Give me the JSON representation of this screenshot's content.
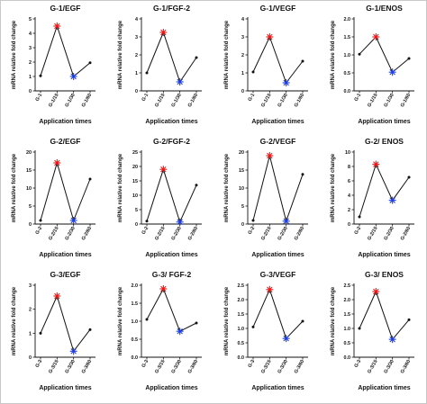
{
  "colors": {
    "line": "#111111",
    "peak": "#e11b1b",
    "trough": "#1f3fd6",
    "point": "#111111"
  },
  "chart_data": [
    {
      "type": "line",
      "title": "G-1/EGF",
      "categories": [
        "G-1",
        "G-1/15",
        "G-1/30",
        "G-1/60"
      ],
      "values": [
        1.05,
        4.5,
        1.0,
        1.95
      ],
      "yticks": [
        "0",
        "1",
        "2",
        "3",
        "4",
        "5"
      ],
      "ylim": [
        0,
        5
      ],
      "xlabel": "Application times",
      "ylabel": "mRNA relative fold change",
      "markers": [
        "dot",
        "star-red",
        "star-blue",
        "dot"
      ]
    },
    {
      "type": "line",
      "title": "G-1/FGF-2",
      "categories": [
        "G-1",
        "G-1/15",
        "G-1/30",
        "G-1/60"
      ],
      "values": [
        1.0,
        3.25,
        0.5,
        1.85
      ],
      "yticks": [
        "0",
        "1",
        "2",
        "3",
        "4"
      ],
      "ylim": [
        0,
        4
      ],
      "xlabel": "Application times",
      "ylabel": "mRNA relative fold change",
      "markers": [
        "dot",
        "star-red",
        "star-blue",
        "dot"
      ]
    },
    {
      "type": "line",
      "title": "G-1/VEGF",
      "categories": [
        "G-1",
        "G-1/15",
        "G-1/30",
        "G-1/60"
      ],
      "values": [
        1.05,
        3.0,
        0.45,
        1.65
      ],
      "yticks": [
        "0",
        "1",
        "2",
        "3",
        "4"
      ],
      "ylim": [
        0,
        4
      ],
      "xlabel": "Application times",
      "ylabel": "mRNA relative fold change",
      "markers": [
        "dot",
        "star-red",
        "star-blue",
        "dot"
      ]
    },
    {
      "type": "line",
      "title": "G-1/ENOS",
      "categories": [
        "G-1",
        "G-1/15",
        "G-1/30",
        "G-1/60"
      ],
      "values": [
        1.02,
        1.5,
        0.52,
        0.9
      ],
      "yticks": [
        "0.0",
        "0.5",
        "1.0",
        "1.5",
        "2.0"
      ],
      "ylim": [
        0,
        2
      ],
      "xlabel": "Application times",
      "ylabel": "mRNA relative fold change",
      "markers": [
        "dot",
        "star-red",
        "star-blue",
        "dot"
      ]
    },
    {
      "type": "line",
      "title": "G-2/EGF",
      "categories": [
        "G-2",
        "G-2/15",
        "G-2/30",
        "G-2/60"
      ],
      "values": [
        1.0,
        17.0,
        1.0,
        12.5
      ],
      "yticks": [
        "0",
        "5",
        "10",
        "15",
        "20"
      ],
      "ylim": [
        0,
        20
      ],
      "xlabel": "Application times",
      "ylabel": "mRNA relative fold change",
      "markers": [
        "dot",
        "star-red",
        "star-blue",
        "dot"
      ]
    },
    {
      "type": "line",
      "title": "G-2/FGF-2",
      "categories": [
        "G-2",
        "G-2/15",
        "G-2/30",
        "G-2/60"
      ],
      "values": [
        1.0,
        19.0,
        0.7,
        13.5
      ],
      "yticks": [
        "0",
        "5",
        "10",
        "15",
        "20",
        "25"
      ],
      "ylim": [
        0,
        25
      ],
      "xlabel": "Application times",
      "ylabel": "mRNA relative fold change",
      "markers": [
        "dot",
        "star-red",
        "star-blue",
        "dot"
      ]
    },
    {
      "type": "line",
      "title": "G-2/VEGF",
      "categories": [
        "G-2",
        "G-2/15",
        "G-2/30",
        "G-2/60"
      ],
      "values": [
        1.0,
        19.0,
        0.8,
        13.8
      ],
      "yticks": [
        "0",
        "5",
        "10",
        "15",
        "20"
      ],
      "ylim": [
        0,
        20
      ],
      "xlabel": "Application times",
      "ylabel": "mRNA relative fold change",
      "markers": [
        "dot",
        "star-red",
        "star-blue",
        "dot"
      ]
    },
    {
      "type": "line",
      "title": "G-2/ ENOS",
      "categories": [
        "G-2",
        "G-2/15",
        "G-2/30",
        "G-2/60"
      ],
      "values": [
        1.0,
        8.3,
        3.3,
        6.5
      ],
      "yticks": [
        "0",
        "2",
        "4",
        "6",
        "8",
        "10"
      ],
      "ylim": [
        0,
        10
      ],
      "xlabel": "Application times",
      "ylabel": "mRNA relative fold change",
      "markers": [
        "dot",
        "star-red",
        "star-blue",
        "dot"
      ]
    },
    {
      "type": "line",
      "title": "G-3/EGF",
      "categories": [
        "G-3",
        "G-3/15",
        "G-3/30",
        "G-3/60"
      ],
      "values": [
        1.0,
        2.55,
        0.25,
        1.15
      ],
      "yticks": [
        "0",
        "1",
        "2",
        "3"
      ],
      "ylim": [
        0,
        3
      ],
      "xlabel": "Application times",
      "ylabel": "mRNA relative fold change",
      "markers": [
        "dot",
        "star-red",
        "star-blue",
        "dot"
      ]
    },
    {
      "type": "line",
      "title": "G-3/ FGF-2",
      "categories": [
        "G-3",
        "G-3/15",
        "G-3/30",
        "G-3/60"
      ],
      "values": [
        1.05,
        1.9,
        0.72,
        0.95
      ],
      "yticks": [
        "0.0",
        "0.5",
        "1.0",
        "1.5",
        "2.0"
      ],
      "ylim": [
        0,
        2
      ],
      "xlabel": "Application times",
      "ylabel": "mRNA relative fold change",
      "markers": [
        "dot",
        "star-red",
        "star-blue",
        "dot"
      ]
    },
    {
      "type": "line",
      "title": "G-3/VEGF",
      "categories": [
        "G-3",
        "G-3/15",
        "G-3/30",
        "G-3/60"
      ],
      "values": [
        1.05,
        2.35,
        0.65,
        1.25
      ],
      "yticks": [
        "0.0",
        "0.5",
        "1.0",
        "1.5",
        "2.0",
        "2.5"
      ],
      "ylim": [
        0,
        2.5
      ],
      "xlabel": "Application times",
      "ylabel": "mRNA relative fold change",
      "markers": [
        "dot",
        "star-red",
        "star-blue",
        "dot"
      ]
    },
    {
      "type": "line",
      "title": "G-3/ ENOS",
      "categories": [
        "G-3",
        "G-3/15",
        "G-3/30",
        "G-3/60"
      ],
      "values": [
        1.0,
        2.28,
        0.62,
        1.3
      ],
      "yticks": [
        "0.0",
        "0.5",
        "1.0",
        "1.5",
        "2.0",
        "2.5"
      ],
      "ylim": [
        0,
        2.5
      ],
      "xlabel": "Application times",
      "ylabel": "mRNA relative fold change",
      "markers": [
        "dot",
        "star-red",
        "star-blue",
        "dot"
      ]
    }
  ]
}
